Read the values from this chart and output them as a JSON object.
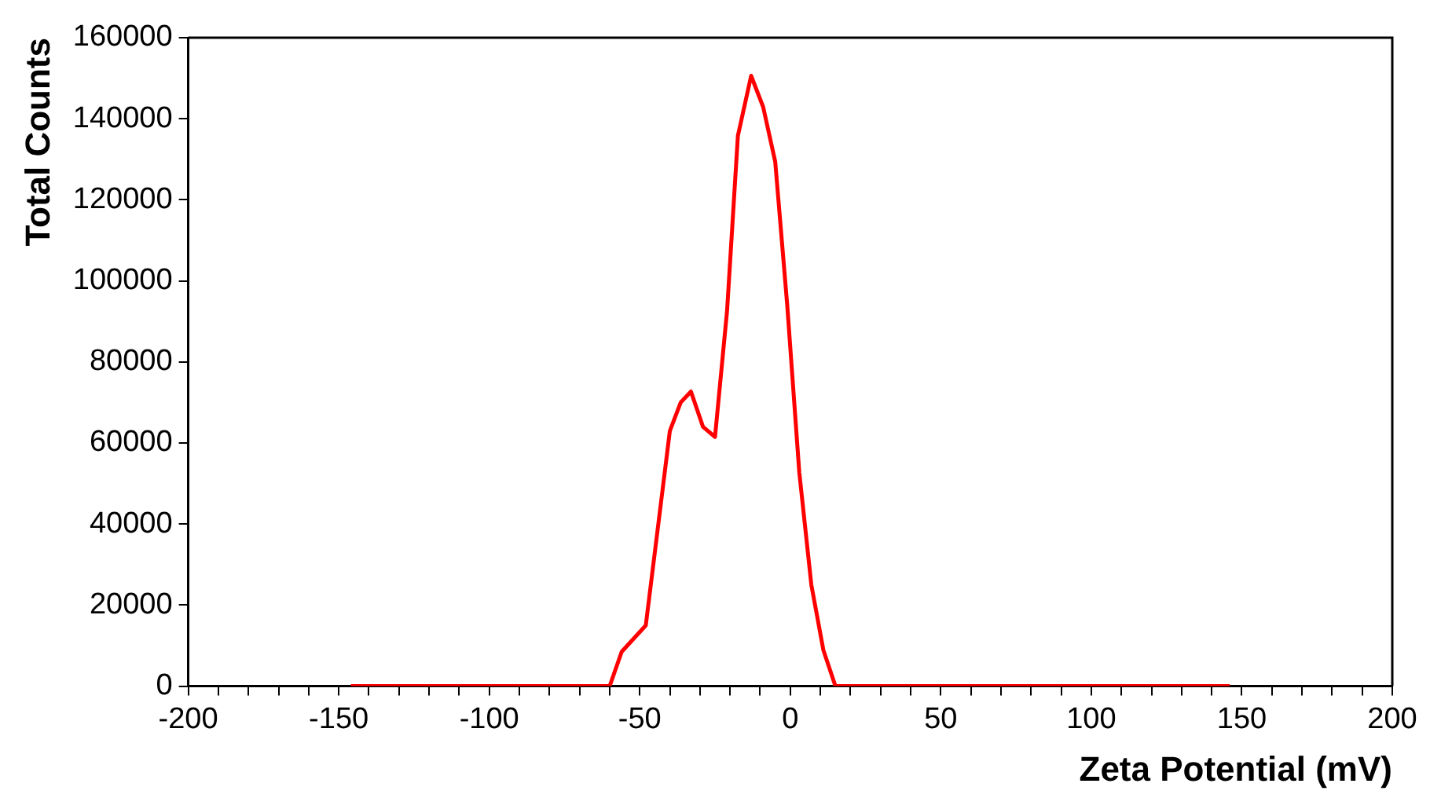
{
  "chart_data": {
    "type": "line",
    "xlabel": "Zeta Potential (mV)",
    "ylabel": "Total Counts",
    "x": [
      -146,
      -60,
      -56,
      -48,
      -40,
      -36.4,
      -33,
      -29,
      -25,
      -21,
      -17.4,
      -13,
      -9,
      -5,
      -1,
      3,
      7,
      11,
      15,
      146
    ],
    "series": [
      {
        "color": "#ff0000",
        "values": [
          0,
          0,
          8500,
          15000,
          63000,
          70000,
          72700,
          64000,
          61500,
          92600,
          135800,
          150600,
          142900,
          129400,
          93900,
          52700,
          25000,
          8900,
          0,
          0
        ]
      }
    ],
    "xlim": [
      -200,
      200
    ],
    "xticks": [
      -200,
      {
        "value": -190,
        "label": null
      },
      {
        "value": -180,
        "label": null
      },
      {
        "value": -170,
        "label": null
      },
      {
        "value": -160,
        "label": null
      },
      -150,
      {
        "value": -140,
        "label": null
      },
      {
        "value": -130,
        "label": null
      },
      {
        "value": -120,
        "label": null
      },
      {
        "value": -110,
        "label": null
      },
      -100,
      {
        "value": -90,
        "label": null
      },
      {
        "value": -80,
        "label": null
      },
      {
        "value": -70,
        "label": null
      },
      {
        "value": -60,
        "label": null
      },
      -50,
      {
        "value": -40,
        "label": null
      },
      {
        "value": -30,
        "label": null
      },
      {
        "value": -20,
        "label": null
      },
      {
        "value": -10,
        "label": null
      },
      0,
      {
        "value": 10,
        "label": null
      },
      {
        "value": 20,
        "label": null
      },
      {
        "value": 30,
        "label": null
      },
      {
        "value": 40,
        "label": null
      },
      50,
      {
        "value": 60,
        "label": null
      },
      {
        "value": 70,
        "label": null
      },
      {
        "value": 80,
        "label": null
      },
      {
        "value": 90,
        "label": null
      },
      100,
      {
        "value": 110,
        "label": null
      },
      {
        "value": 120,
        "label": null
      },
      {
        "value": 130,
        "label": null
      },
      {
        "value": 140,
        "label": null
      },
      150,
      {
        "value": 160,
        "label": null
      },
      {
        "value": 170,
        "label": null
      },
      {
        "value": 180,
        "label": null
      },
      {
        "value": 190,
        "label": null
      },
      200
    ],
    "ylim": [
      0,
      160000
    ],
    "yticks": [
      0,
      20000,
      40000,
      60000,
      80000,
      100000,
      120000,
      140000,
      160000
    ],
    "grid": false,
    "legend": false,
    "marker": "none",
    "line_style": "solid"
  }
}
